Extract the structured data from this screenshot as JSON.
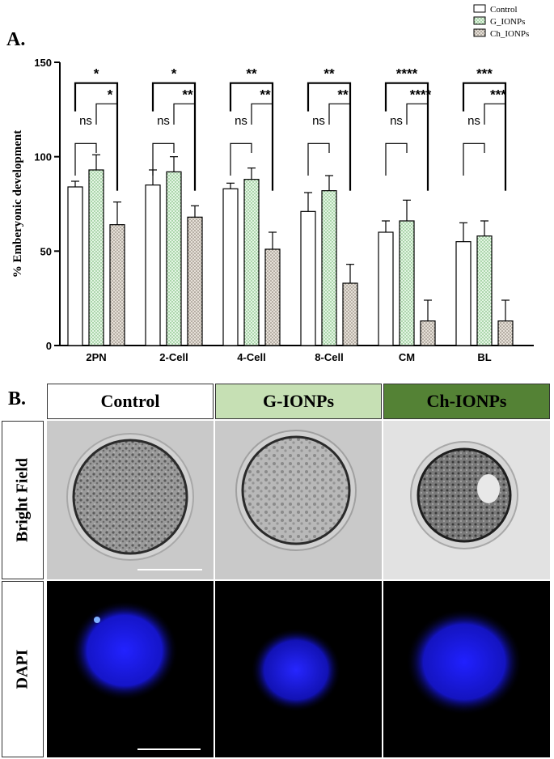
{
  "panel_a_label": "A.",
  "panel_b_label": "B.",
  "chart_data": {
    "type": "bar",
    "title": "",
    "ylabel": "% Emberyonic development",
    "xlabel": "",
    "ylim": [
      0,
      150
    ],
    "yticks": [
      0,
      50,
      100,
      150
    ],
    "categories": [
      "2PN",
      "2-Cell",
      "4-Cell",
      "8-Cell",
      "CM",
      "BL"
    ],
    "series": [
      {
        "name": "Control",
        "values": [
          84,
          85,
          83,
          71,
          60,
          55
        ],
        "errors": [
          3,
          8,
          3,
          10,
          6,
          10
        ],
        "color": "#ffffff"
      },
      {
        "name": "G_IONPs",
        "values": [
          93,
          92,
          88,
          82,
          66,
          58
        ],
        "errors": [
          8,
          8,
          6,
          8,
          11,
          8
        ],
        "color": "#d7f0d7"
      },
      {
        "name": "Ch_IONPs",
        "values": [
          64,
          68,
          51,
          33,
          13,
          13
        ],
        "errors": [
          12,
          6,
          9,
          10,
          11,
          11
        ],
        "color": "#d9d2c8"
      }
    ],
    "legend_position": "top-right",
    "significance": [
      {
        "category": "2PN",
        "control_vs_ch": "*",
        "g_vs_ch": "*",
        "control_vs_g": "ns"
      },
      {
        "category": "2-Cell",
        "control_vs_ch": "*",
        "g_vs_ch": "**",
        "control_vs_g": "ns"
      },
      {
        "category": "4-Cell",
        "control_vs_ch": "**",
        "g_vs_ch": "**",
        "control_vs_g": "ns"
      },
      {
        "category": "8-Cell",
        "control_vs_ch": "**",
        "g_vs_ch": "**",
        "control_vs_g": "ns"
      },
      {
        "category": "CM",
        "control_vs_ch": "****",
        "g_vs_ch": "****",
        "control_vs_g": "ns"
      },
      {
        "category": "BL",
        "control_vs_ch": "***",
        "g_vs_ch": "***",
        "control_vs_g": "ns"
      }
    ]
  },
  "panel_b": {
    "columns": [
      {
        "label": "Control",
        "bg": "#ffffff"
      },
      {
        "label": "G-IONPs",
        "bg": "#c6e0b4"
      },
      {
        "label": "Ch-IONPs",
        "bg": "#548235"
      }
    ],
    "rows": [
      "Bright Field",
      "DAPI"
    ],
    "dapi_color": "#1a1aff"
  }
}
